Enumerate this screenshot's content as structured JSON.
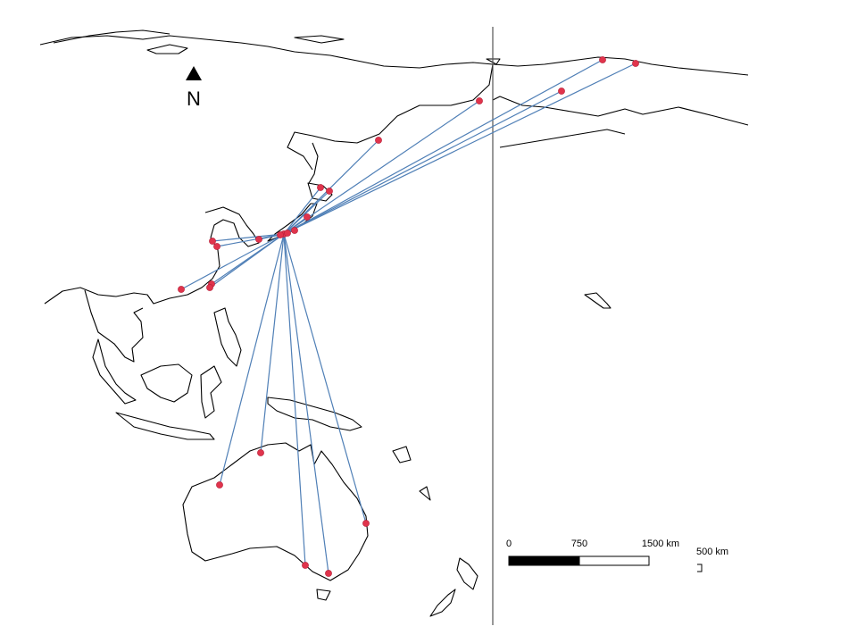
{
  "north_arrow": {
    "label": "N"
  },
  "scale_bar": {
    "labels": [
      "0",
      "750",
      "1500 km"
    ]
  },
  "inset_scale": {
    "label": "500 km"
  }
}
